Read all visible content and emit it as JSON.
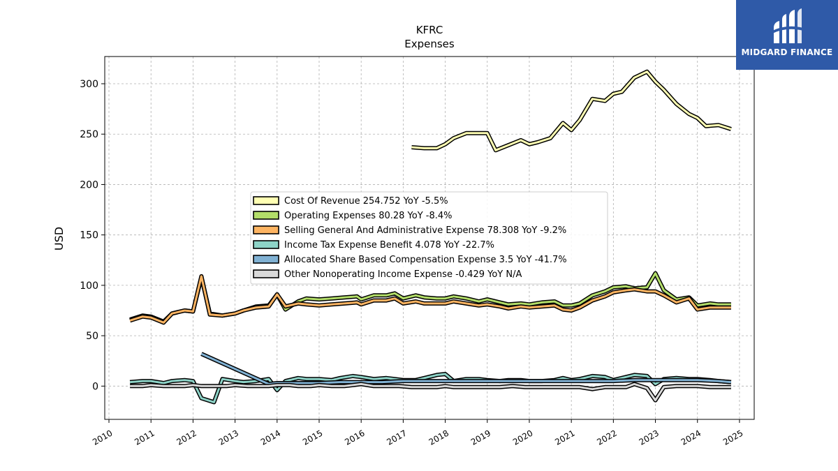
{
  "colors": {
    "background": "#ffffff",
    "grid": "#b0b0b0",
    "axis": "#000000",
    "logo_bg": "#2f5aa8"
  },
  "logo": {
    "text": "MIDGARD FINANCE",
    "icon": "midgard-logo-icon"
  },
  "chart_data": {
    "type": "line",
    "title": "KFRC",
    "subtitle": "Expenses",
    "xlabel": "",
    "ylabel": "USD",
    "xlim": [
      2009.9,
      2025.35
    ],
    "ylim": [
      -33,
      327
    ],
    "xticks": [
      "2010",
      "2011",
      "2012",
      "2013",
      "2014",
      "2015",
      "2016",
      "2017",
      "2018",
      "2019",
      "2020",
      "2021",
      "2022",
      "2023",
      "2024",
      "2025"
    ],
    "yticks": [
      0,
      50,
      100,
      150,
      200,
      250,
      300
    ],
    "grid": true,
    "legend_position": "center",
    "series": [
      {
        "name": "Cost Of Revenue",
        "legend_label": "Cost Of Revenue  254.752 YoY -5.5%",
        "color": "#ffffb3",
        "points": [
          [
            2017.2,
            237
          ],
          [
            2017.5,
            236
          ],
          [
            2017.8,
            236
          ],
          [
            2018.0,
            240
          ],
          [
            2018.2,
            246
          ],
          [
            2018.5,
            251
          ],
          [
            2018.8,
            251
          ],
          [
            2019.0,
            251
          ],
          [
            2019.2,
            234
          ],
          [
            2019.5,
            239
          ],
          [
            2019.8,
            244
          ],
          [
            2020.0,
            240
          ],
          [
            2020.2,
            242
          ],
          [
            2020.5,
            246
          ],
          [
            2020.8,
            261
          ],
          [
            2021.0,
            254
          ],
          [
            2021.2,
            264
          ],
          [
            2021.5,
            285
          ],
          [
            2021.8,
            283
          ],
          [
            2022.0,
            290
          ],
          [
            2022.2,
            292
          ],
          [
            2022.5,
            306
          ],
          [
            2022.8,
            312
          ],
          [
            2023.0,
            302
          ],
          [
            2023.2,
            294
          ],
          [
            2023.5,
            280
          ],
          [
            2023.8,
            270
          ],
          [
            2024.0,
            266
          ],
          [
            2024.2,
            258
          ],
          [
            2024.5,
            259
          ],
          [
            2024.8,
            255
          ]
        ]
      },
      {
        "name": "Operating Expenses",
        "legend_label": "Operating Expenses  80.28 YoY -8.4%",
        "color": "#b3de69",
        "points": [
          [
            2010.5,
            66
          ],
          [
            2010.8,
            70
          ],
          [
            2011.0,
            69
          ],
          [
            2011.3,
            64
          ],
          [
            2011.5,
            72
          ],
          [
            2011.8,
            75
          ],
          [
            2012.0,
            74
          ],
          [
            2012.2,
            108
          ],
          [
            2012.4,
            72
          ],
          [
            2012.7,
            70
          ],
          [
            2013.0,
            72
          ],
          [
            2013.2,
            75
          ],
          [
            2013.5,
            79
          ],
          [
            2013.8,
            80
          ],
          [
            2014.0,
            91
          ],
          [
            2014.2,
            76
          ],
          [
            2014.5,
            84
          ],
          [
            2014.7,
            87
          ],
          [
            2015.0,
            86
          ],
          [
            2015.3,
            87
          ],
          [
            2015.6,
            88
          ],
          [
            2015.9,
            89
          ],
          [
            2016.0,
            86
          ],
          [
            2016.3,
            90
          ],
          [
            2016.6,
            90
          ],
          [
            2016.8,
            92
          ],
          [
            2017.0,
            87
          ],
          [
            2017.3,
            90
          ],
          [
            2017.5,
            88
          ],
          [
            2017.8,
            87
          ],
          [
            2018.0,
            87
          ],
          [
            2018.2,
            89
          ],
          [
            2018.5,
            87
          ],
          [
            2018.8,
            84
          ],
          [
            2019.0,
            86
          ],
          [
            2019.3,
            83
          ],
          [
            2019.5,
            81
          ],
          [
            2019.8,
            82
          ],
          [
            2020.0,
            81
          ],
          [
            2020.3,
            83
          ],
          [
            2020.6,
            84
          ],
          [
            2020.8,
            80
          ],
          [
            2021.0,
            80
          ],
          [
            2021.2,
            82
          ],
          [
            2021.5,
            90
          ],
          [
            2021.8,
            94
          ],
          [
            2022.0,
            98
          ],
          [
            2022.3,
            99
          ],
          [
            2022.5,
            97
          ],
          [
            2022.8,
            98
          ],
          [
            2023.0,
            112
          ],
          [
            2023.2,
            95
          ],
          [
            2023.5,
            86
          ],
          [
            2023.8,
            88
          ],
          [
            2024.0,
            80
          ],
          [
            2024.3,
            82
          ],
          [
            2024.5,
            81
          ],
          [
            2024.8,
            81
          ]
        ]
      },
      {
        "name": "Selling General And Administrative Expense",
        "legend_label": "Selling General And Administrative Expense  78.308 YoY -9.2%",
        "color": "#fdb462",
        "points": [
          [
            2010.5,
            65
          ],
          [
            2010.8,
            69
          ],
          [
            2011.0,
            68
          ],
          [
            2011.3,
            63
          ],
          [
            2011.5,
            72
          ],
          [
            2011.8,
            75
          ],
          [
            2012.0,
            74
          ],
          [
            2012.2,
            109
          ],
          [
            2012.4,
            71
          ],
          [
            2012.7,
            70
          ],
          [
            2013.0,
            72
          ],
          [
            2013.2,
            75
          ],
          [
            2013.5,
            78
          ],
          [
            2013.8,
            79
          ],
          [
            2014.0,
            91
          ],
          [
            2014.2,
            79
          ],
          [
            2014.5,
            82
          ],
          [
            2014.7,
            81
          ],
          [
            2015.0,
            80
          ],
          [
            2015.3,
            81
          ],
          [
            2015.6,
            82
          ],
          [
            2015.9,
            83
          ],
          [
            2016.0,
            81
          ],
          [
            2016.3,
            85
          ],
          [
            2016.6,
            85
          ],
          [
            2016.8,
            87
          ],
          [
            2017.0,
            82
          ],
          [
            2017.3,
            84
          ],
          [
            2017.5,
            82
          ],
          [
            2017.8,
            82
          ],
          [
            2018.0,
            82
          ],
          [
            2018.2,
            84
          ],
          [
            2018.5,
            82
          ],
          [
            2018.8,
            80
          ],
          [
            2019.0,
            81
          ],
          [
            2019.3,
            79
          ],
          [
            2019.5,
            77
          ],
          [
            2019.8,
            79
          ],
          [
            2020.0,
            78
          ],
          [
            2020.3,
            79
          ],
          [
            2020.6,
            80
          ],
          [
            2020.8,
            76
          ],
          [
            2021.0,
            75
          ],
          [
            2021.2,
            78
          ],
          [
            2021.5,
            85
          ],
          [
            2021.8,
            89
          ],
          [
            2022.0,
            93
          ],
          [
            2022.3,
            95
          ],
          [
            2022.5,
            96
          ],
          [
            2022.8,
            94
          ],
          [
            2023.0,
            94
          ],
          [
            2023.2,
            90
          ],
          [
            2023.5,
            83
          ],
          [
            2023.8,
            87
          ],
          [
            2024.0,
            76
          ],
          [
            2024.3,
            78
          ],
          [
            2024.5,
            78
          ],
          [
            2024.8,
            78
          ]
        ]
      },
      {
        "name": "Income Tax Expense Benefit",
        "legend_label": "Income Tax Expense Benefit  4.078 YoY -22.7%",
        "color": "#8dd3c7",
        "points": [
          [
            2010.5,
            4
          ],
          [
            2010.8,
            5
          ],
          [
            2011.0,
            5
          ],
          [
            2011.3,
            3
          ],
          [
            2011.5,
            5
          ],
          [
            2011.8,
            6
          ],
          [
            2012.0,
            5
          ],
          [
            2012.2,
            -12
          ],
          [
            2012.5,
            -16
          ],
          [
            2012.7,
            7
          ],
          [
            2013.0,
            5
          ],
          [
            2013.2,
            4
          ],
          [
            2013.5,
            5
          ],
          [
            2013.8,
            7
          ],
          [
            2014.0,
            -4
          ],
          [
            2014.2,
            5
          ],
          [
            2014.5,
            8
          ],
          [
            2014.7,
            7
          ],
          [
            2015.0,
            7
          ],
          [
            2015.3,
            6
          ],
          [
            2015.5,
            8
          ],
          [
            2015.8,
            10
          ],
          [
            2016.0,
            9
          ],
          [
            2016.3,
            7
          ],
          [
            2016.6,
            8
          ],
          [
            2016.8,
            7
          ],
          [
            2017.0,
            6
          ],
          [
            2017.3,
            6
          ],
          [
            2017.5,
            8
          ],
          [
            2017.8,
            11
          ],
          [
            2018.0,
            12
          ],
          [
            2018.2,
            5
          ],
          [
            2018.5,
            7
          ],
          [
            2018.8,
            7
          ],
          [
            2019.0,
            6
          ],
          [
            2019.3,
            5
          ],
          [
            2019.5,
            6
          ],
          [
            2019.8,
            6
          ],
          [
            2020.0,
            5
          ],
          [
            2020.3,
            5
          ],
          [
            2020.6,
            6
          ],
          [
            2020.8,
            8
          ],
          [
            2021.0,
            6
          ],
          [
            2021.2,
            7
          ],
          [
            2021.5,
            10
          ],
          [
            2021.8,
            9
          ],
          [
            2022.0,
            6
          ],
          [
            2022.3,
            9
          ],
          [
            2022.5,
            11
          ],
          [
            2022.8,
            10
          ],
          [
            2023.0,
            2
          ],
          [
            2023.2,
            7
          ],
          [
            2023.5,
            8
          ],
          [
            2023.8,
            7
          ],
          [
            2024.0,
            7
          ],
          [
            2024.3,
            6
          ],
          [
            2024.5,
            5
          ],
          [
            2024.8,
            4
          ]
        ]
      },
      {
        "name": "Allocated Share Based Compensation Expense",
        "legend_label": "Allocated Share Based Compensation Expense  3.5 YoY -41.7%",
        "color": "#80b1d3",
        "points": [
          [
            2012.2,
            32
          ],
          [
            2013.8,
            2
          ],
          [
            2014.0,
            3
          ],
          [
            2014.5,
            3
          ],
          [
            2015.0,
            3
          ],
          [
            2015.5,
            4
          ],
          [
            2016.0,
            4
          ],
          [
            2016.5,
            4
          ],
          [
            2017.0,
            5
          ],
          [
            2017.5,
            5
          ],
          [
            2018.0,
            5
          ],
          [
            2018.5,
            5
          ],
          [
            2019.0,
            5
          ],
          [
            2019.5,
            5
          ],
          [
            2020.0,
            5
          ],
          [
            2020.5,
            5
          ],
          [
            2021.0,
            5
          ],
          [
            2021.5,
            5
          ],
          [
            2022.0,
            5
          ],
          [
            2022.5,
            6
          ],
          [
            2023.0,
            6
          ],
          [
            2023.5,
            6
          ],
          [
            2024.0,
            6
          ],
          [
            2024.5,
            5
          ],
          [
            2024.8,
            4
          ]
        ]
      },
      {
        "name": "Other Nonoperating Income Expense",
        "legend_label": "Other Nonoperating Income Expense  -0.429 YoY N/A",
        "color": "#d9d9d9",
        "points": [
          [
            2010.5,
            0
          ],
          [
            2010.8,
            0
          ],
          [
            2011.0,
            1
          ],
          [
            2011.3,
            0
          ],
          [
            2011.5,
            0
          ],
          [
            2011.8,
            0
          ],
          [
            2012.0,
            1
          ],
          [
            2012.2,
            0
          ],
          [
            2012.5,
            0
          ],
          [
            2012.8,
            0
          ],
          [
            2013.0,
            1
          ],
          [
            2013.3,
            0
          ],
          [
            2013.5,
            0
          ],
          [
            2013.8,
            0
          ],
          [
            2014.0,
            1
          ],
          [
            2014.3,
            1
          ],
          [
            2014.5,
            0
          ],
          [
            2014.8,
            0
          ],
          [
            2015.0,
            1
          ],
          [
            2015.3,
            0
          ],
          [
            2015.6,
            0
          ],
          [
            2015.8,
            1
          ],
          [
            2016.0,
            2
          ],
          [
            2016.3,
            0
          ],
          [
            2016.6,
            0
          ],
          [
            2016.9,
            0
          ],
          [
            2017.2,
            -1
          ],
          [
            2017.5,
            -1
          ],
          [
            2017.8,
            -1
          ],
          [
            2018.0,
            0
          ],
          [
            2018.2,
            -1
          ],
          [
            2018.5,
            -1
          ],
          [
            2018.8,
            -1
          ],
          [
            2019.0,
            -1
          ],
          [
            2019.3,
            -1
          ],
          [
            2019.6,
            0
          ],
          [
            2019.9,
            -1
          ],
          [
            2020.2,
            -1
          ],
          [
            2020.5,
            -1
          ],
          [
            2020.8,
            -1
          ],
          [
            2021.0,
            -1
          ],
          [
            2021.2,
            -1
          ],
          [
            2021.5,
            -3
          ],
          [
            2021.8,
            -1
          ],
          [
            2022.0,
            -1
          ],
          [
            2022.3,
            -1
          ],
          [
            2022.5,
            2
          ],
          [
            2022.8,
            -2
          ],
          [
            2023.0,
            -14
          ],
          [
            2023.2,
            -1
          ],
          [
            2023.5,
            0
          ],
          [
            2023.8,
            0
          ],
          [
            2024.0,
            0
          ],
          [
            2024.3,
            -1
          ],
          [
            2024.5,
            -1
          ],
          [
            2024.8,
            -1
          ]
        ]
      }
    ]
  }
}
